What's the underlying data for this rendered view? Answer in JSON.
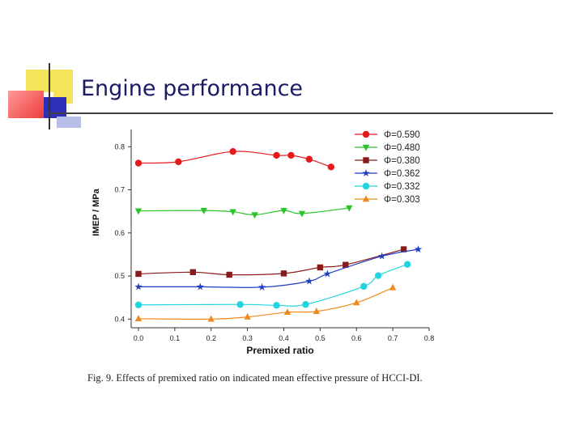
{
  "slide": {
    "title": "Engine performance"
  },
  "colors": {
    "deco_yellow": "#f5e35a",
    "deco_red": "#ee3b3b",
    "deco_blue": "#2e2eb8",
    "deco_lightblue": "#b6bde6",
    "title_text": "#1a1a66"
  },
  "caption": "Fig. 9. Effects of premixed ratio on indicated mean effective pressure of HCCI-DI.",
  "chart_data": {
    "type": "line",
    "xlabel": "Premixed ratio",
    "ylabel": "IMEP / MPa",
    "xlim": [
      -0.02,
      0.8
    ],
    "ylim": [
      0.38,
      0.84
    ],
    "xticks": [
      "0.0",
      "0.1",
      "0.2",
      "0.3",
      "0.4",
      "0.5",
      "0.6",
      "0.7",
      "0.8"
    ],
    "yticks": [
      "0.4",
      "0.5",
      "0.6",
      "0.7",
      "0.8"
    ],
    "legend_position": "top-right",
    "grid": false,
    "series": [
      {
        "name": "Φ=0.590",
        "color": "#e41a1c",
        "marker": "circle",
        "x": [
          0.0,
          0.11,
          0.26,
          0.38,
          0.42,
          0.47,
          0.53
        ],
        "y": [
          0.762,
          0.765,
          0.789,
          0.78,
          0.78,
          0.771,
          0.753
        ]
      },
      {
        "name": "Φ=0.480",
        "color": "#2bc42b",
        "marker": "triangle-down",
        "x": [
          0.0,
          0.18,
          0.26,
          0.32,
          0.4,
          0.45,
          0.58
        ],
        "y": [
          0.651,
          0.652,
          0.649,
          0.642,
          0.652,
          0.645,
          0.658
        ]
      },
      {
        "name": "Φ=0.380",
        "color": "#8b1a1a",
        "marker": "square",
        "x": [
          0.0,
          0.15,
          0.25,
          0.4,
          0.5,
          0.57,
          0.73
        ],
        "y": [
          0.505,
          0.509,
          0.503,
          0.506,
          0.52,
          0.526,
          0.562
        ]
      },
      {
        "name": "Φ=0.362",
        "color": "#1f3fbf",
        "marker": "star",
        "x": [
          0.0,
          0.17,
          0.34,
          0.47,
          0.52,
          0.67,
          0.77
        ],
        "y": [
          0.475,
          0.475,
          0.474,
          0.488,
          0.505,
          0.546,
          0.562
        ]
      },
      {
        "name": "Φ=0.332",
        "color": "#22d3e0",
        "marker": "circle",
        "x": [
          0.0,
          0.28,
          0.38,
          0.46,
          0.62,
          0.66,
          0.74
        ],
        "y": [
          0.433,
          0.434,
          0.432,
          0.434,
          0.476,
          0.501,
          0.527
        ]
      },
      {
        "name": "Φ=0.303",
        "color": "#f08a1c",
        "marker": "triangle-up",
        "x": [
          0.0,
          0.2,
          0.3,
          0.41,
          0.49,
          0.6,
          0.7
        ],
        "y": [
          0.401,
          0.4,
          0.405,
          0.416,
          0.418,
          0.438,
          0.473
        ]
      }
    ]
  }
}
